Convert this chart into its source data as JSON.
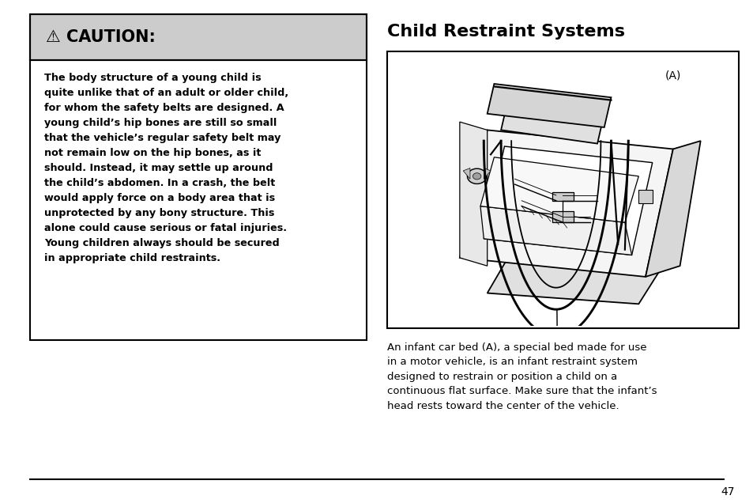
{
  "bg_color": "#ffffff",
  "page_number": "47",
  "title_right": "Child Restraint Systems",
  "caution_header": "⚠ CAUTION:",
  "caution_bg": "#cccccc",
  "caution_border": "#000000",
  "caution_text": "The body structure of a young child is\nquite unlike that of an adult or older child,\nfor whom the safety belts are designed. A\nyoung child’s hip bones are still so small\nthat the vehicle’s regular safety belt may\nnot remain low on the hip bones, as it\nshould. Instead, it may settle up around\nthe child’s abdomen. In a crash, the belt\nwould apply force on a body area that is\nunprotected by any bony structure. This\nalone could cause serious or fatal injuries.\nYoung children always should be secured\nin appropriate child restraints.",
  "body_text": "An infant car bed (A), a special bed made for use\nin a motor vehicle, is an infant restraint system\ndesigned to restrain or position a child on a\ncontinuous flat surface. Make sure that the infant’s\nhead rests toward the center of the vehicle.",
  "image_label": "(A)"
}
